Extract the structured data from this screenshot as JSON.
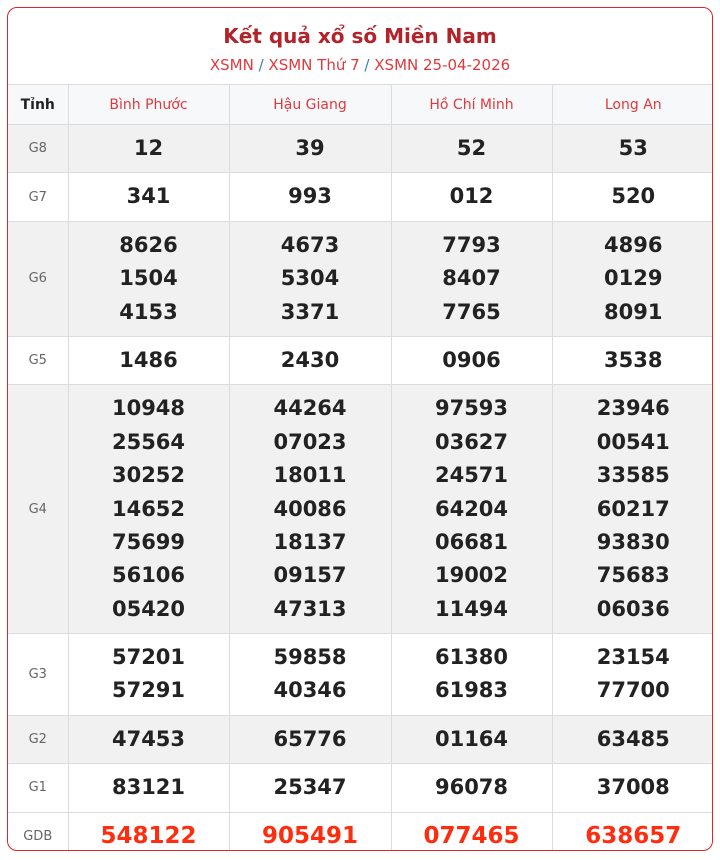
{
  "header": {
    "title": "Kết quả xổ số Miền Nam",
    "breadcrumbs": [
      "XSMN",
      "XSMN Thứ 7",
      "XSMN 25-04-2026"
    ],
    "separator": "/"
  },
  "table": {
    "label_header": "Tỉnh",
    "provinces": [
      "Bình Phước",
      "Hậu Giang",
      "Hồ Chí Minh",
      "Long An"
    ],
    "rows": [
      {
        "prize": "G8",
        "values": [
          [
            "12"
          ],
          [
            "39"
          ],
          [
            "52"
          ],
          [
            "53"
          ]
        ]
      },
      {
        "prize": "G7",
        "values": [
          [
            "341"
          ],
          [
            "993"
          ],
          [
            "012"
          ],
          [
            "520"
          ]
        ]
      },
      {
        "prize": "G6",
        "values": [
          [
            "8626",
            "1504",
            "4153"
          ],
          [
            "4673",
            "5304",
            "3371"
          ],
          [
            "7793",
            "8407",
            "7765"
          ],
          [
            "4896",
            "0129",
            "8091"
          ]
        ]
      },
      {
        "prize": "G5",
        "values": [
          [
            "1486"
          ],
          [
            "2430"
          ],
          [
            "0906"
          ],
          [
            "3538"
          ]
        ]
      },
      {
        "prize": "G4",
        "values": [
          [
            "10948",
            "25564",
            "30252",
            "14652",
            "75699",
            "56106",
            "05420"
          ],
          [
            "44264",
            "07023",
            "18011",
            "40086",
            "18137",
            "09157",
            "47313"
          ],
          [
            "97593",
            "03627",
            "24571",
            "64204",
            "06681",
            "19002",
            "11494"
          ],
          [
            "23946",
            "00541",
            "33585",
            "60217",
            "93830",
            "75683",
            "06036"
          ]
        ]
      },
      {
        "prize": "G3",
        "values": [
          [
            "57201",
            "57291"
          ],
          [
            "59858",
            "40346"
          ],
          [
            "61380",
            "61983"
          ],
          [
            "23154",
            "77700"
          ]
        ]
      },
      {
        "prize": "G2",
        "values": [
          [
            "47453"
          ],
          [
            "65776"
          ],
          [
            "01164"
          ],
          [
            "63485"
          ]
        ]
      },
      {
        "prize": "G1",
        "values": [
          [
            "83121"
          ],
          [
            "25347"
          ],
          [
            "96078"
          ],
          [
            "37008"
          ]
        ]
      },
      {
        "prize": "GDB",
        "values": [
          [
            "548122"
          ],
          [
            "905491"
          ],
          [
            "077465"
          ],
          [
            "638657"
          ]
        ]
      }
    ]
  },
  "colors": {
    "accent": "#b3242a",
    "link": "#e0393e",
    "special": "#ff2d0f",
    "border": "#e0242a"
  }
}
